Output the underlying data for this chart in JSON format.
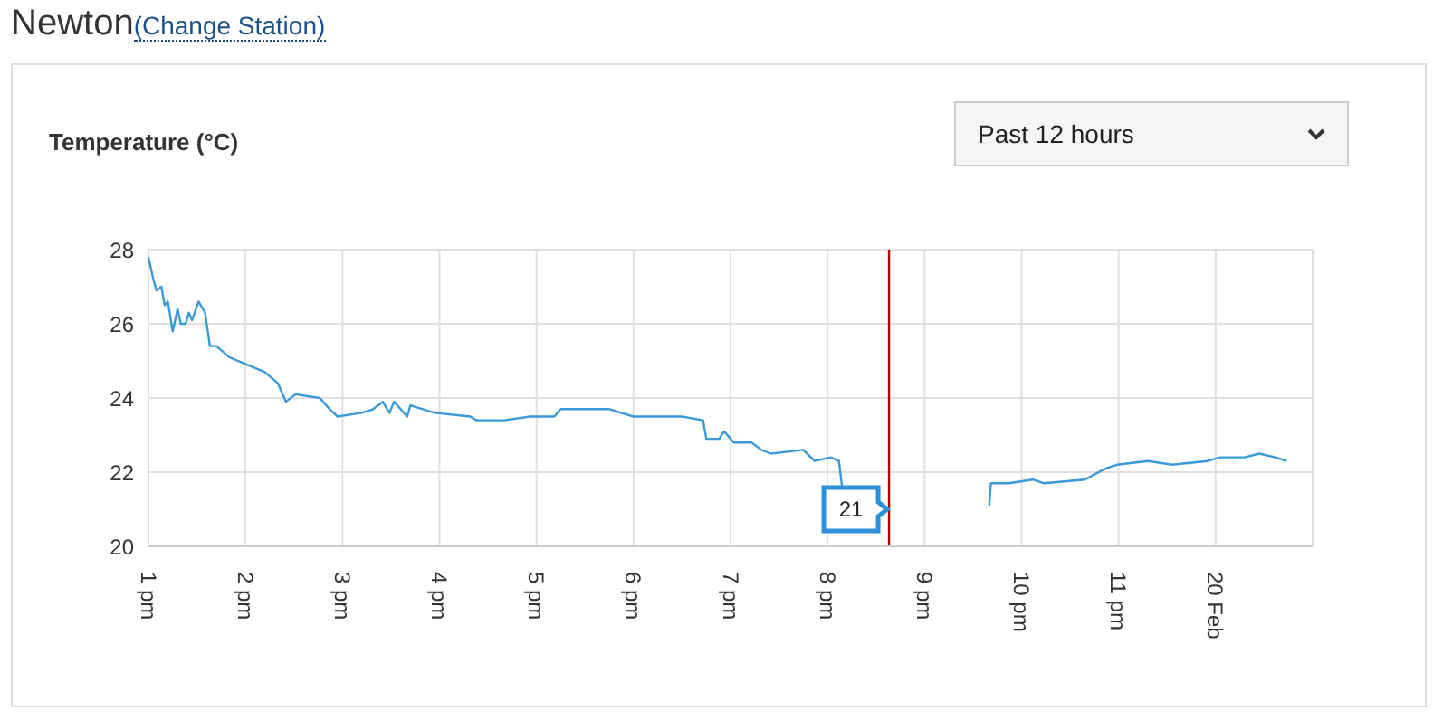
{
  "chart_data": {
    "type": "line",
    "title": "Newton",
    "ylabel": "Temperature (°C)",
    "annotations": [
      "(Change Station)",
      "Past 12 hours",
      {
        "text": "21",
        "x": "--02-19T20:38",
        "y": 21
      }
    ],
    "x": [
      "--02-19T13:00",
      "--02-19T13:03",
      "--02-19T13:05",
      "--02-19T13:08",
      "--02-19T13:10",
      "--02-19T13:12",
      "--02-19T13:15",
      "--02-19T13:18",
      "--02-19T13:20",
      "--02-19T13:23",
      "--02-19T13:25",
      "--02-19T13:27",
      "--02-19T13:31",
      "--02-19T13:35",
      "--02-19T13:38",
      "--02-19T13:42",
      "--02-19T13:50",
      "--02-19T14:01",
      "--02-19T14:12",
      "--02-19T14:20",
      "--02-19T14:25",
      "--02-19T14:31",
      "--02-19T14:46",
      "--02-19T14:52",
      "--02-19T14:57",
      "--02-19T15:12",
      "--02-19T15:19",
      "--02-19T15:25",
      "--02-19T15:29",
      "--02-19T15:32",
      "--02-19T15:40",
      "--02-19T15:42",
      "--02-19T15:57",
      "--02-19T16:19",
      "--02-19T16:23",
      "--02-19T16:40",
      "--02-19T16:56",
      "--02-19T17:11",
      "--02-19T17:15",
      "--02-19T17:30",
      "--02-19T17:45",
      "--02-19T18:00",
      "--02-19T18:11",
      "--02-19T18:30",
      "--02-19T18:43",
      "--02-19T18:45",
      "--02-19T18:53",
      "--02-19T18:56",
      "--02-19T19:02",
      "--02-19T19:13",
      "--02-19T19:19",
      "--02-19T19:25",
      "--02-19T19:45",
      "--02-19T19:52",
      "--02-19T20:02",
      "--02-19T20:07",
      "--02-19T20:09",
      "--02-19T20:10",
      "--02-19T20:54",
      "--02-19T21:40",
      "--02-19T21:41",
      "--02-19T21:52",
      "--02-19T22:07",
      "--02-19T22:14",
      "--02-19T22:39",
      "--02-19T22:52",
      "--02-19T22:59",
      "--02-19T23:18",
      "--02-19T23:33",
      "--02-19T23:55",
      "--02-20T00:03",
      "--02-20T00:18",
      "--02-20T00:27",
      "--02-20T00:37",
      "--02-20T00:44"
    ],
    "series": [
      {
        "color": "#3a9ad9",
        "values": [
          27.8,
          27.2,
          26.9,
          27.0,
          26.5,
          26.6,
          25.8,
          26.4,
          26.0,
          26.0,
          26.3,
          26.1,
          26.6,
          26.3,
          25.4,
          25.4,
          25.1,
          24.9,
          24.7,
          24.4,
          23.9,
          24.1,
          24.0,
          23.7,
          23.5,
          23.6,
          23.7,
          23.9,
          23.6,
          23.9,
          23.5,
          23.8,
          23.6,
          23.5,
          23.4,
          23.4,
          23.5,
          23.5,
          23.7,
          23.7,
          23.7,
          23.5,
          23.5,
          23.5,
          23.4,
          22.9,
          22.9,
          23.1,
          22.8,
          22.8,
          22.6,
          22.5,
          22.6,
          22.3,
          22.4,
          22.3,
          21.6,
          null,
          null,
          21.1,
          21.7,
          21.7,
          21.8,
          21.7,
          21.8,
          22.1,
          22.2,
          22.3,
          22.2,
          22.3,
          22.4,
          22.4,
          22.5,
          22.4,
          22.3
        ]
      }
    ],
    "xlim": [
      "--02-19T13:00",
      "--02-20T01:00"
    ],
    "xticks": [
      {
        "value": "--02-19T13:00",
        "label": "1 pm"
      },
      {
        "value": "--02-19T14:00",
        "label": "2 pm"
      },
      {
        "value": "--02-19T15:00",
        "label": "3 pm"
      },
      {
        "value": "--02-19T16:00",
        "label": "4 pm"
      },
      {
        "value": "--02-19T17:00",
        "label": "5 pm"
      },
      {
        "value": "--02-19T18:00",
        "label": "6 pm"
      },
      {
        "value": "--02-19T19:00",
        "label": "7 pm"
      },
      {
        "value": "--02-19T20:00",
        "label": "8 pm"
      },
      {
        "value": "--02-19T21:00",
        "label": "9 pm"
      },
      {
        "value": "--02-19T22:00",
        "label": "10 pm"
      },
      {
        "value": "--02-19T23:00",
        "label": "11 pm"
      },
      {
        "value": "--02-20T00:00",
        "label": "20 Feb"
      }
    ],
    "ylim": [
      20,
      28
    ],
    "yticks": [
      20,
      22,
      24,
      26,
      28
    ],
    "ref_lines": [
      {
        "axis": "x",
        "value": "--02-19T20:38",
        "color": "#b00000"
      }
    ],
    "grid": true
  }
}
